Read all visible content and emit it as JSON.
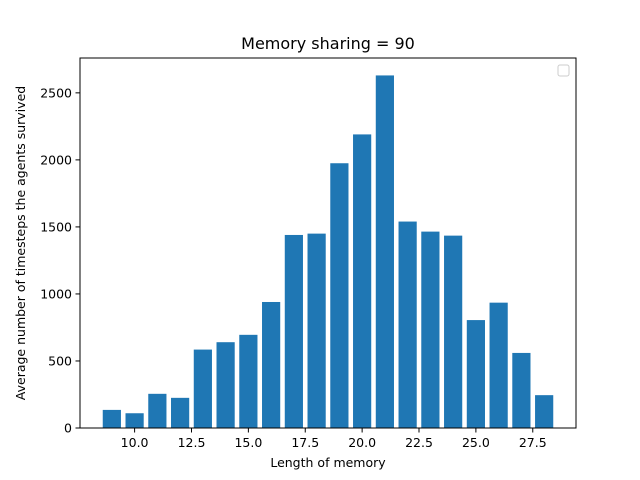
{
  "chart_data": {
    "type": "bar",
    "title": "Memory sharing = 90",
    "xlabel": "Length of memory",
    "ylabel": "Average number of timesteps the agents survived",
    "x": [
      9,
      10,
      11,
      12,
      13,
      14,
      15,
      16,
      17,
      18,
      19,
      20,
      21,
      22,
      23,
      24,
      25,
      26,
      27,
      28
    ],
    "values": [
      135,
      110,
      255,
      225,
      585,
      640,
      695,
      940,
      1440,
      1450,
      1975,
      2190,
      2630,
      1540,
      1465,
      1435,
      805,
      935,
      560,
      245
    ],
    "xlim": [
      7.6,
      29.4
    ],
    "ylim": [
      0,
      2760
    ],
    "xticks": [
      10.0,
      12.5,
      15.0,
      17.5,
      20.0,
      22.5,
      25.0,
      27.5
    ],
    "xtick_labels": [
      "10.0",
      "12.5",
      "15.0",
      "17.5",
      "20.0",
      "22.5",
      "25.0",
      "27.5"
    ],
    "yticks": [
      0,
      500,
      1000,
      1500,
      2000,
      2500
    ],
    "ytick_labels": [
      "0",
      "500",
      "1000",
      "1500",
      "2000",
      "2500"
    ],
    "bar_width": 0.8,
    "color": "#1f77b4",
    "grid": false,
    "legend": "top-right (empty)"
  }
}
